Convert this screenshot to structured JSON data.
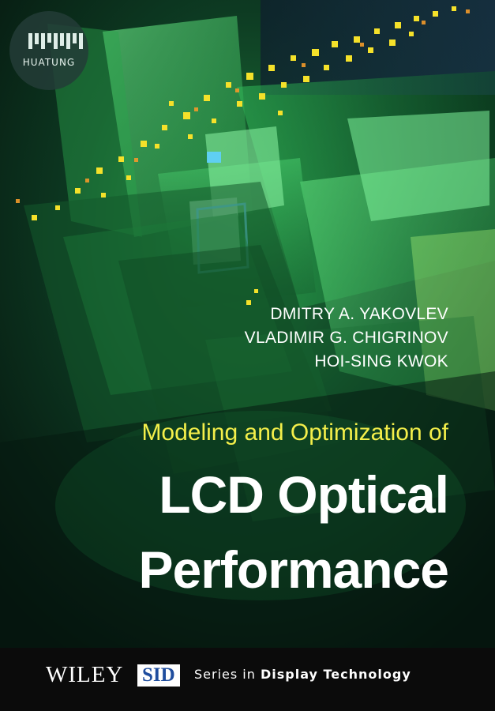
{
  "publisher_badge": {
    "text": "HUATUNG"
  },
  "book": {
    "authors": [
      "DMITRY A. YAKOVLEV",
      "VLADIMIR G. CHIGRINOV",
      "HOI-SING KWOK"
    ],
    "subtitle": "Modeling and Optimization of",
    "title_line_1": "LCD Optical",
    "title_line_2": "Performance"
  },
  "footer": {
    "publisher": "WILEY",
    "series_mark": "SID",
    "series_text": "Series in",
    "series_name": "Display Technology"
  },
  "colors": {
    "background": "#0a1410",
    "glow": "#3fd26a",
    "subtitle": "#f4ef4a",
    "title": "#ffffff",
    "sid_blue": "#1f4d9e",
    "pixels": "#f5e12a"
  },
  "icons": [
    "huatung-logo",
    "green-panel-art"
  ]
}
